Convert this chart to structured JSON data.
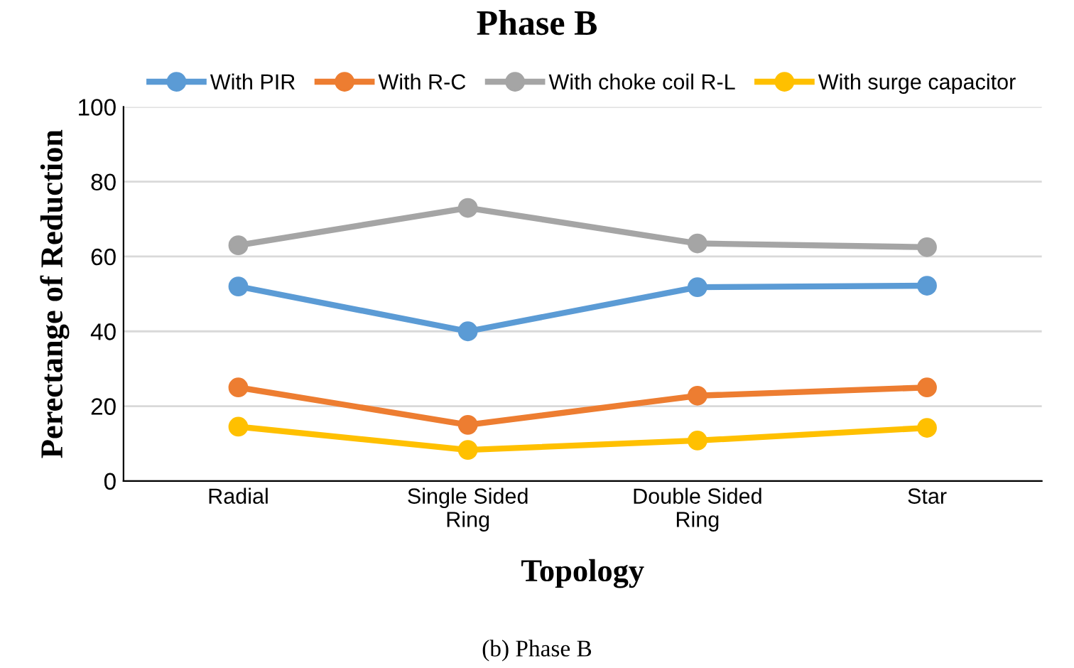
{
  "chart_data": {
    "type": "line",
    "title": "Phase B",
    "xlabel": "Topology",
    "ylabel": "Perectange of Reduction",
    "annotations": [
      "(b) Phase B"
    ],
    "categories": [
      "Radial",
      "Single Sided\nRing",
      "Double Sided\nRing",
      "Star"
    ],
    "series": [
      {
        "name": "With PIR",
        "color": "#5b9bd5",
        "values": [
          52,
          40,
          51.8,
          52.2
        ]
      },
      {
        "name": "With R-C",
        "color": "#ed7d31",
        "values": [
          25,
          15,
          22.8,
          25
        ]
      },
      {
        "name": "With choke coil R-L",
        "color": "#a5a5a5",
        "values": [
          63,
          73,
          63.5,
          62.5
        ]
      },
      {
        "name": "With surge capacitor",
        "color": "#ffc000",
        "values": [
          14.5,
          8.3,
          10.8,
          14.2
        ]
      }
    ],
    "ylim": [
      0,
      100
    ],
    "yticks": [
      0,
      20,
      40,
      60,
      80,
      100
    ],
    "grid": "y",
    "legend": "top",
    "marker": "circle",
    "line_style": "solid"
  }
}
